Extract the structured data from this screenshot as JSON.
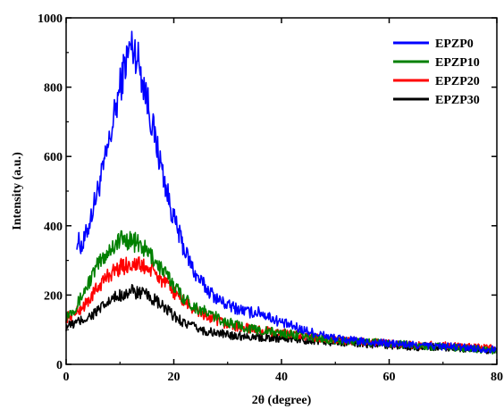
{
  "chart_data": {
    "type": "line",
    "xlabel": "2θ (degree)",
    "ylabel": "Intensity (a.u.)",
    "xlim": [
      0,
      80
    ],
    "ylim": [
      0,
      1000
    ],
    "x_ticks": [
      "0",
      "20",
      "40",
      "60",
      "80"
    ],
    "y_ticks": [
      "0",
      "200",
      "400",
      "600",
      "800",
      "1000"
    ],
    "legend_position": "top-right",
    "grid": false,
    "series": [
      {
        "name": "EPZP0",
        "color": "#0000ff",
        "x": [
          2,
          3,
          4,
          5,
          6,
          7,
          8,
          9,
          10,
          11,
          12,
          13,
          14,
          15,
          16,
          17,
          18,
          19,
          20,
          22,
          24,
          26,
          28,
          30,
          32,
          34,
          36,
          38,
          40,
          45,
          50,
          55,
          60,
          65,
          70,
          75,
          80
        ],
        "y": [
          360,
          340,
          390,
          450,
          510,
          570,
          640,
          720,
          800,
          870,
          920,
          900,
          840,
          770,
          690,
          620,
          550,
          480,
          420,
          330,
          260,
          220,
          190,
          170,
          160,
          150,
          150,
          135,
          120,
          95,
          75,
          65,
          60,
          55,
          52,
          48,
          42
        ]
      },
      {
        "name": "EPZP10",
        "color": "#008000",
        "x": [
          0,
          2,
          4,
          6,
          8,
          10,
          12,
          14,
          16,
          18,
          20,
          22,
          24,
          26,
          28,
          30,
          35,
          40,
          45,
          50,
          55,
          60,
          65,
          70,
          75,
          80
        ],
        "y": [
          140,
          170,
          230,
          290,
          330,
          360,
          360,
          340,
          310,
          270,
          230,
          190,
          165,
          150,
          135,
          120,
          100,
          90,
          80,
          70,
          65,
          60,
          55,
          50,
          45,
          40
        ]
      },
      {
        "name": "EPZP20",
        "color": "#ff0000",
        "x": [
          0,
          2,
          4,
          6,
          8,
          10,
          12,
          14,
          16,
          18,
          20,
          22,
          24,
          26,
          28,
          30,
          35,
          40,
          45,
          50,
          55,
          60,
          65,
          70,
          75,
          80
        ],
        "y": [
          135,
          150,
          180,
          225,
          260,
          280,
          290,
          285,
          270,
          240,
          210,
          180,
          155,
          140,
          125,
          115,
          100,
          90,
          80,
          70,
          65,
          60,
          55,
          55,
          50,
          45
        ]
      },
      {
        "name": "EPZP30",
        "color": "#000000",
        "x": [
          0,
          2,
          4,
          6,
          8,
          10,
          12,
          14,
          16,
          18,
          20,
          22,
          24,
          26,
          28,
          30,
          35,
          40,
          45,
          50,
          55,
          60,
          65,
          70,
          75,
          80
        ],
        "y": [
          110,
          120,
          135,
          155,
          180,
          200,
          210,
          205,
          190,
          165,
          140,
          120,
          105,
          95,
          90,
          85,
          80,
          75,
          70,
          65,
          60,
          55,
          50,
          50,
          45,
          40
        ]
      }
    ]
  }
}
